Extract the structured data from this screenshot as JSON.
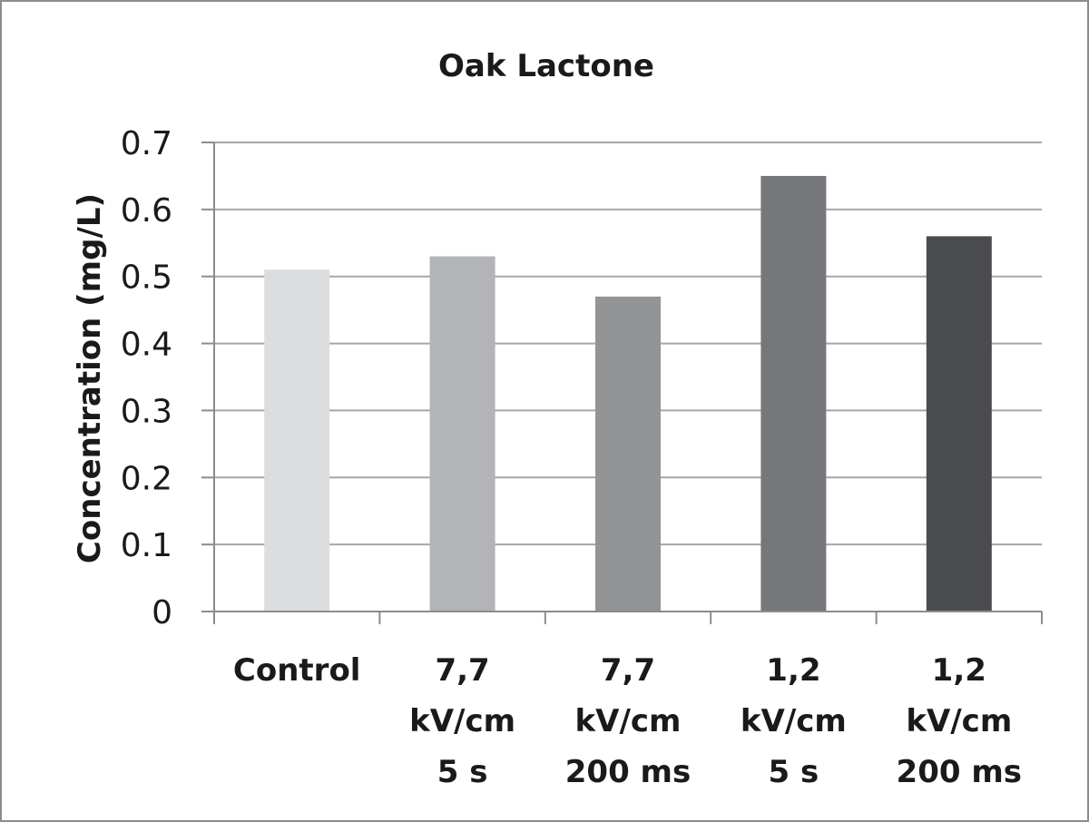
{
  "chart_data": {
    "type": "bar",
    "title": "Oak Lactone",
    "ylabel": "Concentration (mg/L)",
    "xlabel": "",
    "ylim": [
      0,
      0.7
    ],
    "yticks": [
      "0",
      "0.1",
      "0.2",
      "0.3",
      "0.4",
      "0.5",
      "0.6",
      "0.7"
    ],
    "grid": true,
    "legend": "none",
    "categories": [
      [
        "Control"
      ],
      [
        "7,7",
        "kV/cm",
        "5 s"
      ],
      [
        "7,7",
        "kV/cm",
        "200 ms"
      ],
      [
        "1,2",
        "kV/cm",
        "5 s"
      ],
      [
        "1,2",
        "kV/cm",
        "200 ms"
      ]
    ],
    "values": [
      0.51,
      0.53,
      0.47,
      0.65,
      0.56
    ],
    "colors": [
      "#dcdddf",
      "#b3b4b6",
      "#939496",
      "#76777a",
      "#4a4b4d"
    ]
  }
}
